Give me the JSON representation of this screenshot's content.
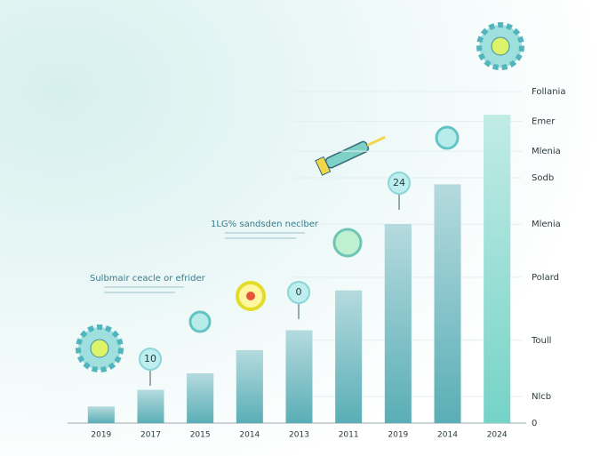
{
  "chart_data": {
    "type": "bar",
    "categories": [
      "2019",
      "2017",
      "2015",
      "2014",
      "2013",
      "2011",
      "2019",
      "2014",
      "2024"
    ],
    "values": [
      5,
      10,
      15,
      22,
      28,
      40,
      60,
      72,
      93
    ],
    "colors": [
      "#5aaeb6",
      "#5aaeb6",
      "#5aaeb6",
      "#5aaeb6",
      "#5aaeb6",
      "#5aaeb6",
      "#5aaeb6",
      "#5aaeb6",
      "#76d3c7"
    ],
    "ylim": [
      0,
      100
    ],
    "yticks": [
      0,
      {
        "value": 8,
        "label": "Nlcb"
      },
      {
        "value": 25,
        "label": "Toull"
      },
      {
        "value": 44,
        "label": "Polard"
      },
      {
        "value": 60,
        "label": "Mlenia"
      },
      {
        "value": 74,
        "label": "Sodb"
      },
      {
        "value": 82,
        "label": "Mlenia"
      },
      {
        "value": 91,
        "label": "Emer"
      },
      {
        "value": 100,
        "label": "Follania"
      }
    ],
    "grid": true,
    "annotations": [
      "Sulbmair ceacle or efrider",
      "1LG% sandsden neclber",
      "10",
      "0",
      "24"
    ]
  }
}
